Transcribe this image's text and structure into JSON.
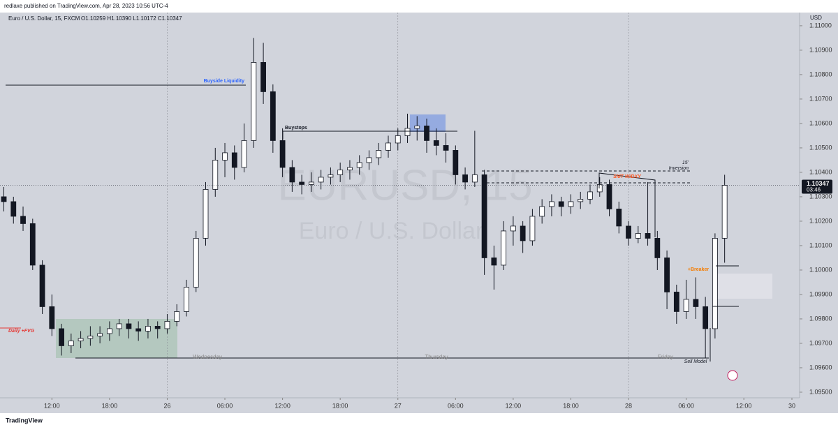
{
  "header": {
    "publisher": "redlaxe published on TradingView.com, Apr 28, 2023 10:56 UTC-4",
    "footer": "TradingView"
  },
  "chart_data": {
    "type": "candlestick",
    "symbol": "Euro / U.S. Dollar, 15, FXCM",
    "ohlc_text": "O1.10259 H1.10390 L1.10172 C1.10347",
    "currency": "USD",
    "watermark": "EURUSD, 15",
    "watermark_sub": "Euro / U.S. Dollar",
    "last_price": {
      "value": 1.10347,
      "label": "1.10347"
    },
    "countdown": "03:46",
    "xlim": [
      -17.4,
      65.8
    ],
    "ylim": [
      1.09477,
      1.11054
    ],
    "xticks": [
      {
        "value": -12,
        "label": "12:00"
      },
      {
        "value": -6,
        "label": "18:00"
      },
      {
        "value": 0,
        "label": "26"
      },
      {
        "value": 6,
        "label": "06:00"
      },
      {
        "value": 12,
        "label": "12:00"
      },
      {
        "value": 18,
        "label": "18:00"
      },
      {
        "value": 24,
        "label": "27"
      },
      {
        "value": 30,
        "label": "06:00"
      },
      {
        "value": 36,
        "label": "12:00"
      },
      {
        "value": 42,
        "label": "18:00"
      },
      {
        "value": 48,
        "label": "28"
      },
      {
        "value": 54,
        "label": "06:00"
      },
      {
        "value": 60,
        "label": "12:00"
      },
      {
        "value": 65,
        "label": "30"
      }
    ],
    "yticks": [
      {
        "value": 1.11,
        "label": "1.11000"
      },
      {
        "value": 1.109,
        "label": "1.10900"
      },
      {
        "value": 1.108,
        "label": "1.10800"
      },
      {
        "value": 1.107,
        "label": "1.10700"
      },
      {
        "value": 1.106,
        "label": "1.10600"
      },
      {
        "value": 1.105,
        "label": "1.10500"
      },
      {
        "value": 1.104,
        "label": "1.10400"
      },
      {
        "value": 1.103,
        "label": "1.10300"
      },
      {
        "value": 1.102,
        "label": "1.10200"
      },
      {
        "value": 1.101,
        "label": "1.10100"
      },
      {
        "value": 1.1,
        "label": "1.10000"
      },
      {
        "value": 1.099,
        "label": "1.09900"
      },
      {
        "value": 1.098,
        "label": "1.09800"
      },
      {
        "value": 1.097,
        "label": "1.09700"
      },
      {
        "value": 1.096,
        "label": "1.09600"
      },
      {
        "value": 1.095,
        "label": "1.09500"
      }
    ],
    "day_separators": [
      0,
      24,
      48
    ],
    "x": [
      -17,
      -16,
      -15,
      -14,
      -13,
      -12,
      -11,
      -10,
      -9,
      -8,
      -7,
      -6,
      -5,
      -4,
      -3,
      -2,
      -1,
      0,
      1,
      2,
      3,
      4,
      5,
      6,
      7,
      8,
      9,
      10,
      11,
      12,
      13,
      14,
      15,
      16,
      17,
      18,
      19,
      20,
      21,
      22,
      23,
      24,
      25,
      26,
      27,
      28,
      29,
      30,
      31,
      32,
      33,
      34,
      35,
      36,
      37,
      38,
      39,
      40,
      41,
      42,
      43,
      44,
      45,
      46,
      47,
      48,
      49,
      50,
      51,
      52,
      53,
      54,
      55,
      56,
      57,
      58
    ],
    "candles": [
      [
        1.103,
        1.1034,
        1.1024,
        1.1028
      ],
      [
        1.1028,
        1.103,
        1.1019,
        1.1022
      ],
      [
        1.1022,
        1.1026,
        1.1016,
        1.1019
      ],
      [
        1.1019,
        1.1021,
        1.1,
        1.1002
      ],
      [
        1.1002,
        1.1004,
        1.0982,
        1.0985
      ],
      [
        1.0985,
        1.099,
        1.0973,
        1.0976
      ],
      [
        1.0976,
        1.0978,
        1.0965,
        1.0969
      ],
      [
        1.0969,
        1.0974,
        1.0966,
        1.0971
      ],
      [
        1.0971,
        1.0975,
        1.0968,
        1.0972
      ],
      [
        1.0972,
        1.0977,
        1.0969,
        1.0973
      ],
      [
        1.0973,
        1.0977,
        1.097,
        1.0974
      ],
      [
        1.0974,
        1.0979,
        1.0971,
        1.0976
      ],
      [
        1.0976,
        1.098,
        1.0973,
        1.0978
      ],
      [
        1.0978,
        1.098,
        1.0972,
        1.0976
      ],
      [
        1.0976,
        1.0979,
        1.0971,
        1.0975
      ],
      [
        1.0975,
        1.098,
        1.0972,
        1.0977
      ],
      [
        1.0977,
        1.0979,
        1.0972,
        1.0976
      ],
      [
        1.0976,
        1.0982,
        1.0974,
        1.0979
      ],
      [
        1.0979,
        1.0986,
        1.0977,
        1.0983
      ],
      [
        1.0983,
        1.0996,
        1.0981,
        1.0993
      ],
      [
        1.0993,
        1.1016,
        1.0991,
        1.1013
      ],
      [
        1.1013,
        1.1036,
        1.101,
        1.1033
      ],
      [
        1.1033,
        1.105,
        1.103,
        1.1045
      ],
      [
        1.1045,
        1.1052,
        1.1038,
        1.1048
      ],
      [
        1.1048,
        1.1051,
        1.1037,
        1.1042
      ],
      [
        1.1042,
        1.106,
        1.104,
        1.1053
      ],
      [
        1.1053,
        1.1095,
        1.105,
        1.1085
      ],
      [
        1.1085,
        1.1093,
        1.1068,
        1.1073
      ],
      [
        1.1073,
        1.1076,
        1.1048,
        1.1053
      ],
      [
        1.1053,
        1.1058,
        1.1038,
        1.1042
      ],
      [
        1.1042,
        1.1045,
        1.1032,
        1.1036
      ],
      [
        1.1036,
        1.1039,
        1.1031,
        1.1035
      ],
      [
        1.1035,
        1.104,
        1.1032,
        1.1036
      ],
      [
        1.1036,
        1.1041,
        1.1033,
        1.1038
      ],
      [
        1.1038,
        1.1042,
        1.1035,
        1.1039
      ],
      [
        1.1039,
        1.1044,
        1.1036,
        1.1041
      ],
      [
        1.1041,
        1.1045,
        1.1037,
        1.1042
      ],
      [
        1.1042,
        1.1047,
        1.1039,
        1.1044
      ],
      [
        1.1044,
        1.1049,
        1.1041,
        1.1046
      ],
      [
        1.1046,
        1.1052,
        1.1043,
        1.1049
      ],
      [
        1.1049,
        1.1055,
        1.1046,
        1.1052
      ],
      [
        1.1052,
        1.1058,
        1.1049,
        1.1055
      ],
      [
        1.1055,
        1.1064,
        1.1052,
        1.1058
      ],
      [
        1.1058,
        1.1063,
        1.1053,
        1.1059
      ],
      [
        1.1059,
        1.1062,
        1.1048,
        1.1053
      ],
      [
        1.1053,
        1.1058,
        1.1047,
        1.1051
      ],
      [
        1.1051,
        1.1056,
        1.1044,
        1.1049
      ],
      [
        1.1049,
        1.1051,
        1.1035,
        1.1039
      ],
      [
        1.1039,
        1.1042,
        1.1033,
        1.1036
      ],
      [
        1.1036,
        1.1057,
        1.1034,
        1.1039
      ],
      [
        1.1039,
        1.1041,
        1.0998,
        1.1005
      ],
      [
        1.1005,
        1.101,
        1.0992,
        1.1002
      ],
      [
        1.1002,
        1.102,
        1.1,
        1.1016
      ],
      [
        1.1016,
        1.1022,
        1.101,
        1.1018
      ],
      [
        1.1018,
        1.102,
        1.1007,
        1.1012
      ],
      [
        1.1012,
        1.1025,
        1.101,
        1.1022
      ],
      [
        1.1022,
        1.1029,
        1.1019,
        1.1026
      ],
      [
        1.1026,
        1.1031,
        1.1022,
        1.1028
      ],
      [
        1.1028,
        1.103,
        1.1022,
        1.1026
      ],
      [
        1.1026,
        1.1031,
        1.1023,
        1.1028
      ],
      [
        1.1028,
        1.1032,
        1.1025,
        1.1029
      ],
      [
        1.1029,
        1.1035,
        1.1027,
        1.1032
      ],
      [
        1.1032,
        1.1038,
        1.103,
        1.1035
      ],
      [
        1.1035,
        1.1037,
        1.1022,
        1.1025
      ],
      [
        1.1025,
        1.1028,
        1.1015,
        1.1018
      ],
      [
        1.1018,
        1.102,
        1.101,
        1.1013
      ],
      [
        1.1013,
        1.1018,
        1.1011,
        1.1015
      ],
      [
        1.1015,
        1.1036,
        1.101,
        1.1013
      ],
      [
        1.1013,
        1.1016,
        1.1,
        1.1005
      ],
      [
        1.1005,
        1.1008,
        1.0984,
        1.0991
      ],
      [
        1.0991,
        1.0994,
        1.0978,
        1.0983
      ],
      [
        1.0983,
        1.0996,
        1.098,
        1.0988
      ],
      [
        1.0988,
        1.0997,
        1.098,
        1.0985
      ],
      [
        1.0985,
        1.0989,
        1.0964,
        1.0976
      ],
      [
        1.0976,
        1.1015,
        1.0972,
        1.1013
      ],
      [
        1.1013,
        1.1039,
        1.1003,
        1.10347
      ]
    ],
    "annotations": {
      "buyside": "Buyside Liquidity",
      "buystops": "Buystops",
      "fvg": "Daily +FVG",
      "smt": "SMT W/DXY",
      "inv_tf": "15'",
      "inversion": "Inversion",
      "breaker": "+Breaker",
      "sell_model": "Sell Model",
      "wed": "Wednesday",
      "thu": "Thursday",
      "fri": "Friday"
    }
  }
}
